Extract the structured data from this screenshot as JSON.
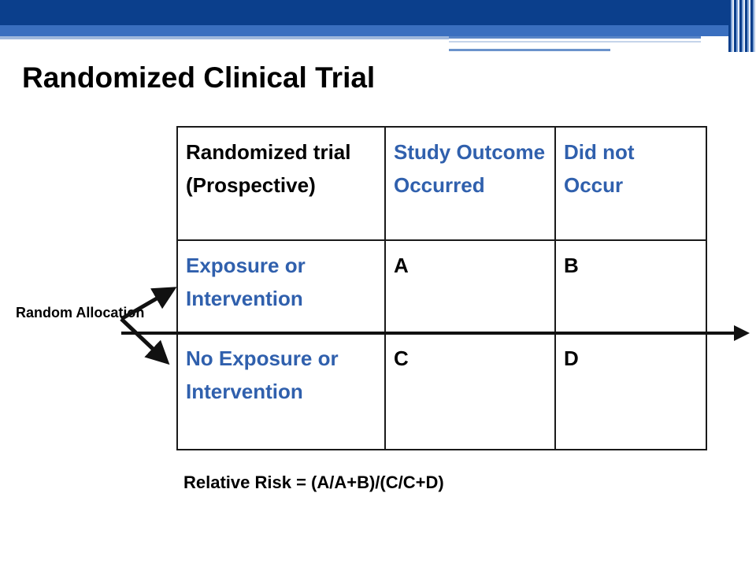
{
  "title": "Randomized Clinical Trial",
  "table": {
    "header": {
      "row_label": "Randomized trial (Prospective)",
      "col1": "Study Outcome Occurred",
      "col2": "Did not Occur"
    },
    "rows": [
      {
        "label": "Exposure or Intervention",
        "a": "A",
        "b": "B"
      },
      {
        "label": "No Exposure or Intervention",
        "a": "C",
        "b": "D"
      }
    ]
  },
  "allocation_label": "Random Allocation",
  "formula": "Relative Risk = (A/A+B)/(C/C+D)",
  "colors": {
    "header_band": "#0b3f8c",
    "accent_text": "#3060ad",
    "text": "#000000"
  }
}
